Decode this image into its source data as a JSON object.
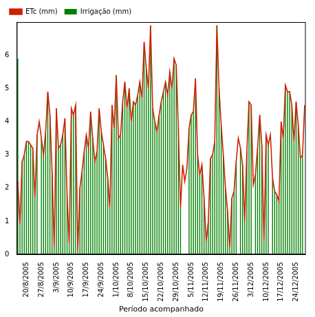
{
  "chart_data": {
    "type": "bar",
    "x_label": "Período acompanhado",
    "categories": [
      null,
      null,
      null,
      null,
      "20/8/2005",
      null,
      null,
      null,
      null,
      null,
      null,
      "27/8/2005",
      null,
      null,
      null,
      null,
      null,
      null,
      "3/9/2005",
      null,
      null,
      null,
      null,
      null,
      null,
      "10/9/2005",
      null,
      null,
      null,
      null,
      null,
      null,
      "17/9/2005",
      null,
      null,
      null,
      null,
      null,
      null,
      "24/9/2005",
      null,
      null,
      null,
      null,
      null,
      null,
      "1/10/2005",
      null,
      null,
      null,
      null,
      null,
      null,
      "8/10/2005",
      null,
      null,
      null,
      null,
      null,
      null,
      "15/10/2005",
      null,
      null,
      null,
      null,
      null,
      null,
      "22/10/2005",
      null,
      null,
      null,
      null,
      null,
      null,
      "29/10/2005",
      null,
      null,
      null,
      null,
      null,
      null,
      "5/11/2005",
      null,
      null,
      null,
      null,
      null,
      null,
      "12/11/2005",
      null,
      null,
      null,
      null,
      null,
      null,
      "19/11/2005",
      null,
      null,
      null,
      null,
      null,
      null,
      "26/11/2005",
      null,
      null,
      null,
      null,
      null,
      null,
      "3/12/2005",
      null,
      null,
      null,
      null,
      null,
      null,
      "10/12/2005",
      null,
      null,
      null,
      null,
      null,
      null,
      "17/12/2005",
      null,
      null,
      null,
      null,
      null,
      null,
      "24/12/2005",
      null,
      null,
      null,
      null
    ],
    "series": [
      {
        "name": "ETc (mm)",
        "type": "line",
        "color": "#cc2200",
        "values": [
          2.2,
          0.9,
          2.8,
          3.0,
          3.4,
          3.4,
          3.3,
          3.2,
          1.7,
          3.6,
          4.0,
          3.5,
          3.0,
          3.7,
          4.9,
          4.2,
          2.5,
          0.2,
          4.4,
          3.2,
          3.3,
          3.6,
          4.1,
          1.8,
          0.3,
          4.4,
          4.2,
          4.5,
          0.1,
          2.0,
          2.5,
          3.1,
          3.6,
          3.2,
          4.3,
          3.5,
          2.8,
          3.1,
          4.4,
          3.7,
          3.3,
          2.9,
          2.3,
          1.4,
          4.5,
          3.8,
          5.4,
          3.5,
          3.6,
          4.6,
          5.2,
          4.4,
          5.0,
          4.0,
          4.6,
          4.5,
          4.8,
          5.2,
          4.7,
          6.4,
          5.6,
          5.0,
          6.9,
          4.4,
          4.0,
          3.7,
          4.2,
          4.6,
          4.9,
          5.2,
          4.8,
          5.5,
          5.0,
          5.9,
          5.7,
          3.8,
          1.4,
          2.7,
          2.2,
          2.6,
          3.8,
          4.2,
          4.3,
          5.3,
          3.0,
          2.4,
          2.7,
          1.7,
          0.4,
          1.0,
          2.9,
          3.0,
          3.4,
          6.9,
          5.0,
          3.9,
          3.0,
          2.0,
          1.3,
          0.2,
          1.7,
          1.9,
          2.8,
          3.5,
          3.2,
          2.7,
          1.0,
          3.1,
          4.6,
          4.5,
          2.1,
          2.4,
          3.2,
          4.2,
          3.3,
          0.4,
          3.6,
          3.3,
          3.6,
          2.3,
          1.9,
          1.8,
          1.6,
          4.0,
          3.5,
          5.1,
          4.9,
          4.9,
          4.5,
          3.4,
          4.6,
          3.9,
          2.9,
          3.0,
          4.5
        ]
      },
      {
        "name": "Irrigação (mm)",
        "type": "bar",
        "color": "#008000",
        "values": [
          5.9,
          0.9,
          2.8,
          3.0,
          3.4,
          3.4,
          3.3,
          3.2,
          1.7,
          3.6,
          0,
          3.5,
          3.0,
          3.7,
          4.9,
          4.2,
          2.5,
          0.2,
          4.4,
          3.2,
          3.3,
          3.6,
          4.1,
          1.8,
          0.3,
          4.4,
          4.2,
          4.5,
          0.1,
          2.0,
          2.5,
          3.1,
          3.6,
          3.2,
          4.3,
          3.5,
          2.8,
          3.1,
          4.4,
          3.7,
          3.3,
          2.9,
          2.3,
          1.4,
          4.5,
          3.8,
          5.4,
          3.5,
          3.6,
          4.6,
          5.2,
          4.4,
          5.0,
          4.0,
          4.6,
          4.5,
          4.8,
          5.2,
          4.7,
          6.4,
          5.6,
          5.0,
          6.9,
          4.4,
          4.0,
          3.7,
          4.2,
          4.6,
          4.9,
          5.2,
          4.8,
          5.5,
          5.0,
          5.9,
          5.7,
          3.8,
          1.4,
          0,
          0,
          0,
          3.8,
          4.2,
          4.3,
          5.3,
          3.0,
          2.4,
          2.7,
          1.7,
          0.4,
          1.0,
          2.9,
          3.0,
          3.4,
          6.9,
          5.0,
          3.9,
          3.0,
          2.0,
          1.3,
          0.2,
          1.7,
          1.9,
          2.8,
          0,
          3.2,
          2.7,
          1.0,
          3.1,
          4.6,
          4.5,
          0,
          2.4,
          3.2,
          4.2,
          3.3,
          0.4,
          3.6,
          3.3,
          0,
          2.3,
          1.9,
          1.8,
          1.6,
          4.0,
          3.5,
          5.1,
          4.9,
          4.9,
          4.5,
          3.4,
          4.6,
          3.9,
          2.9,
          3.0,
          0
        ]
      }
    ],
    "ylim": [
      0,
      7
    ],
    "yticks": [
      0,
      1,
      2,
      3,
      4,
      5,
      6
    ],
    "grid": false,
    "legend": "upper left"
  }
}
